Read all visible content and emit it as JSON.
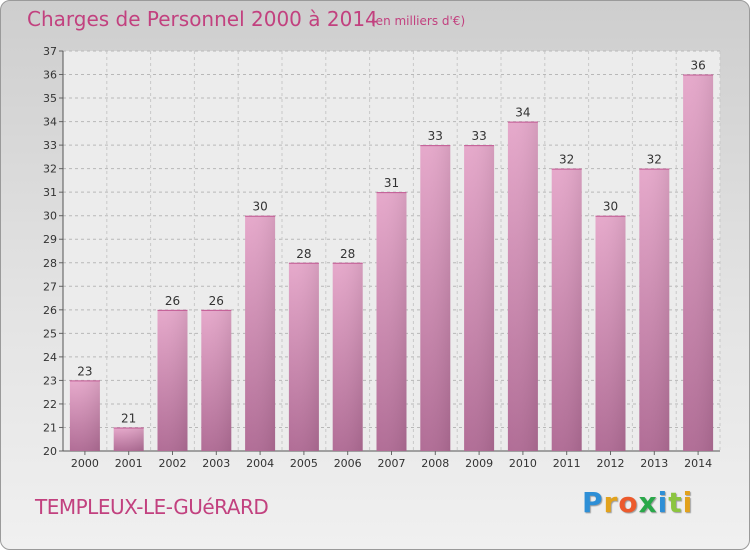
{
  "header": {
    "title": "Charges de Personnel 2000 à 2014",
    "subtitle": "(en milliers d'€)"
  },
  "footer": {
    "commune": "TEMPLEUX-LE-GUéRARD"
  },
  "logo": {
    "letters": [
      "P",
      "r",
      "o",
      "x",
      "i",
      "t",
      "i"
    ],
    "colors": [
      "#2e8fd6",
      "#e2a21c",
      "#ec5a2c",
      "#2aa84a",
      "#2e8fd6",
      "#8cc53f",
      "#e2a21c"
    ]
  },
  "chart_data": {
    "type": "bar",
    "categories": [
      "2000",
      "2001",
      "2002",
      "2003",
      "2004",
      "2005",
      "2006",
      "2007",
      "2008",
      "2009",
      "2010",
      "2011",
      "2012",
      "2013",
      "2014"
    ],
    "values": [
      23,
      21,
      26,
      26,
      30,
      28,
      28,
      31,
      33,
      33,
      34,
      32,
      30,
      32,
      36
    ],
    "title": "Charges de Personnel 2000 à 2014",
    "subtitle": "(en milliers d'€)",
    "xlabel": "",
    "ylabel": "",
    "ylim": [
      20,
      37
    ],
    "yticks": [
      "20",
      "21",
      "22",
      "23",
      "24",
      "25",
      "26",
      "27",
      "28",
      "29",
      "30",
      "31",
      "32",
      "33",
      "34",
      "35",
      "36",
      "37"
    ],
    "grid": true,
    "bar_color": "#d98bb5"
  }
}
